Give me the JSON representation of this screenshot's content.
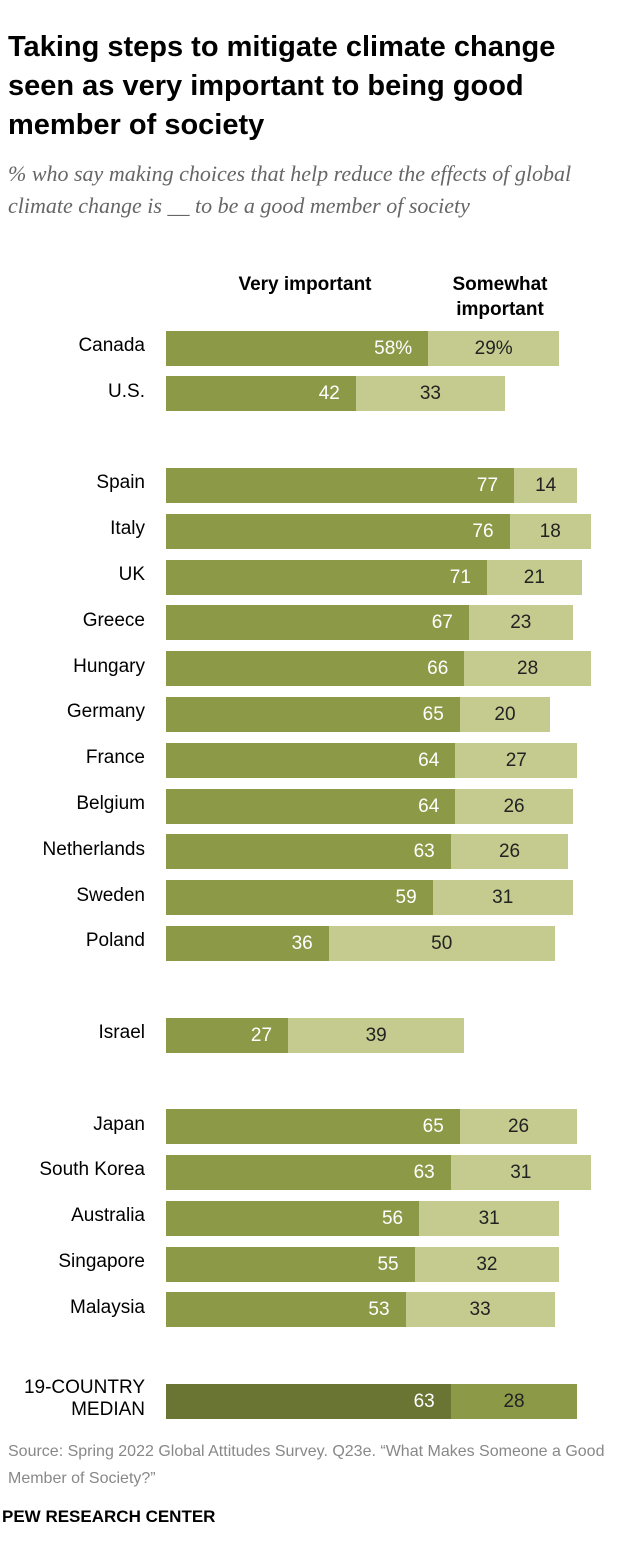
{
  "chart_data": {
    "type": "stacked-bar",
    "title": "Taking steps to mitigate climate change seen as very important to being good member of society",
    "subtitle": "% who say making choices that help reduce the effects of global climate change is __ to be a good member of society",
    "categories": [
      "Canada",
      "U.S.",
      null,
      "Spain",
      "Italy",
      "UK",
      "Greece",
      "Hungary",
      "Germany",
      "France",
      "Belgium",
      "Netherlands",
      "Sweden",
      "Poland",
      null,
      "Israel",
      null,
      "Japan",
      "South Korea",
      "Australia",
      "Singapore",
      "Malaysia",
      null,
      "19-COUNTRY MEDIAN"
    ],
    "series": [
      {
        "name": "Very important",
        "color": "#8c9a48",
        "highlight_color": "#6a7534",
        "values": [
          58,
          42,
          null,
          77,
          76,
          71,
          67,
          66,
          65,
          64,
          64,
          63,
          59,
          36,
          null,
          27,
          null,
          65,
          63,
          56,
          55,
          53,
          null,
          63
        ],
        "value_labels": [
          "58%",
          "42",
          null,
          "77",
          "76",
          "71",
          "67",
          "66",
          "65",
          "64",
          "64",
          "63",
          "59",
          "36",
          null,
          "27",
          null,
          "65",
          "63",
          "56",
          "55",
          "53",
          null,
          "63"
        ]
      },
      {
        "name": "Somewhat important",
        "color": "#c5ca8e",
        "highlight_color": "#8c9a48",
        "values": [
          29,
          33,
          null,
          14,
          18,
          21,
          23,
          28,
          20,
          27,
          26,
          26,
          31,
          50,
          null,
          39,
          null,
          26,
          31,
          31,
          32,
          33,
          null,
          28
        ],
        "value_labels": [
          "29%",
          "33",
          null,
          "14",
          "18",
          "21",
          "23",
          "28",
          "20",
          "27",
          "26",
          "26",
          "31",
          "50",
          null,
          "39",
          null,
          "26",
          "31",
          "31",
          "32",
          "33",
          null,
          "28"
        ]
      }
    ],
    "highlight_category": "19-COUNTRY MEDIAN",
    "source": "Source: Spring 2022 Global Attitudes Survey. Q23e. “What Makes Someone a Good Member of Society?”",
    "credit": "PEW RESEARCH CENTER"
  }
}
